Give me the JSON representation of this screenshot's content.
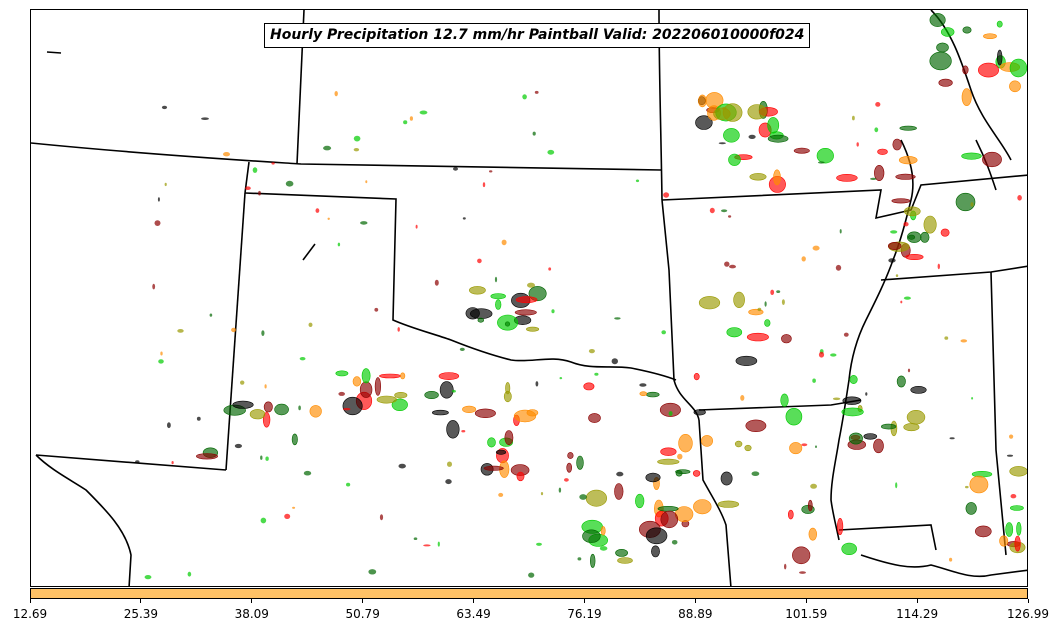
{
  "title": "Hourly Precipitation 12.7 mm/hr Paintball Valid: 202206010000f024",
  "colors": {
    "colorbar_fill": "#ffc266",
    "paintball_members": [
      "#00cc00",
      "#006600",
      "#ff0000",
      "#8b0000",
      "#ff8c00",
      "#999900",
      "#000000"
    ],
    "borders": "#000000"
  },
  "colorbar": {
    "ticks": [
      "12.69",
      "25.39",
      "38.09",
      "50.79",
      "63.49",
      "76.19",
      "88.89",
      "101.59",
      "114.29",
      "126.99"
    ]
  }
}
